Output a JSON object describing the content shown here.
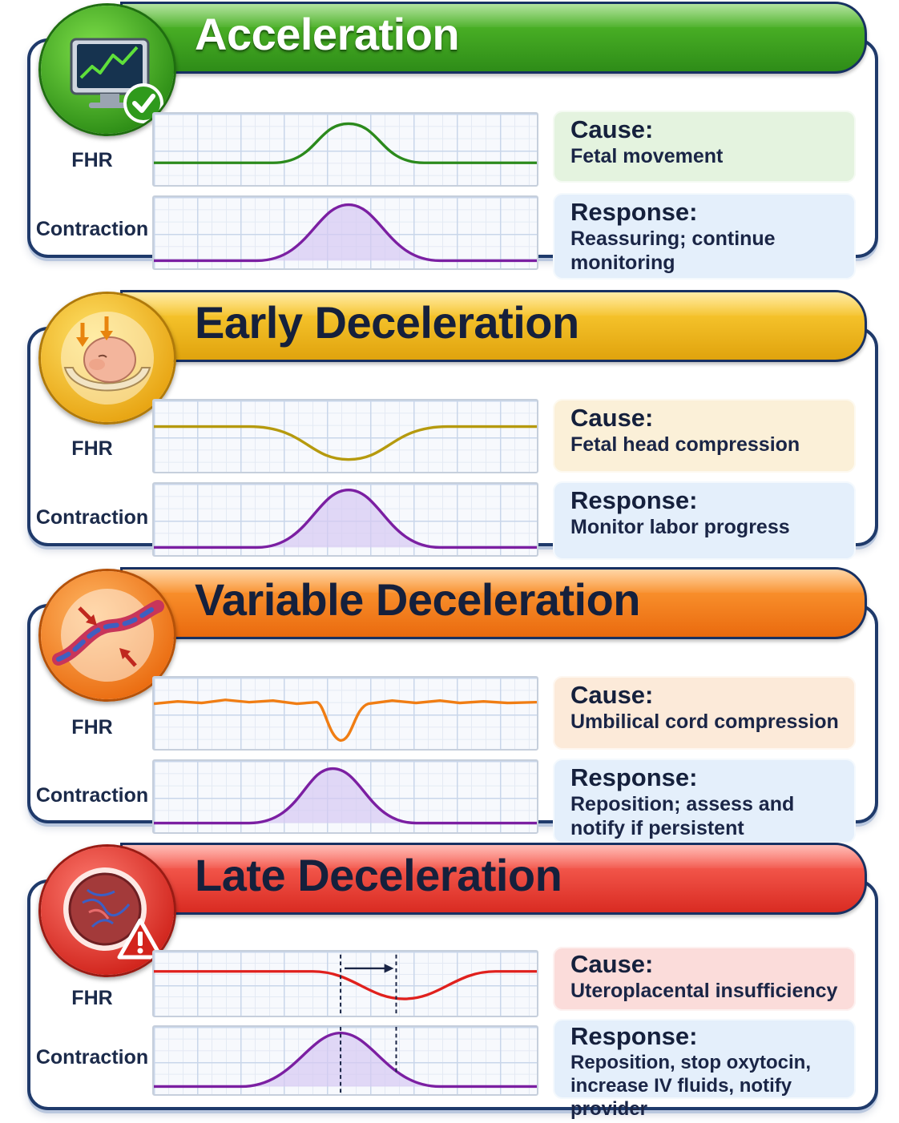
{
  "sections": [
    {
      "title": "Acceleration",
      "fhr_label": "FHR",
      "contraction_label": "Contraction",
      "cause_heading": "Cause:",
      "cause": "Fetal movement",
      "response_heading": "Response:",
      "response": "Reassuring; continue monitoring",
      "icon": "monitor-checkmark-icon",
      "colors": {
        "banner_top": "#56c02b",
        "banner_bottom": "#2e8c18",
        "title": "#ffffff",
        "fhr_line": "#2b8a1c",
        "cause_bg": "#e4f3df"
      }
    },
    {
      "title": "Early Deceleration",
      "fhr_label": "FHR",
      "contraction_label": "Contraction",
      "cause_heading": "Cause:",
      "cause": "Fetal head compression",
      "response_heading": "Response:",
      "response": "Monitor labor progress",
      "icon": "fetal-head-compression-icon",
      "colors": {
        "banner_top": "#ffd23a",
        "banner_bottom": "#e0a30d",
        "title": "#15203c",
        "fhr_line": "#b69a0e",
        "cause_bg": "#fbf0d8"
      }
    },
    {
      "title": "Variable Deceleration",
      "fhr_label": "FHR",
      "contraction_label": "Contraction",
      "cause_heading": "Cause:",
      "cause": "Umbilical cord compression",
      "response_heading": "Response:",
      "response": "Reposition; assess and notify if persistent",
      "icon": "umbilical-cord-compression-icon",
      "colors": {
        "banner_top": "#ffa13a",
        "banner_bottom": "#ea6a0e",
        "title": "#15203c",
        "fhr_line": "#f07d13",
        "cause_bg": "#fcead9"
      }
    },
    {
      "title": "Late Deceleration",
      "fhr_label": "FHR",
      "contraction_label": "Contraction",
      "cause_heading": "Cause:",
      "cause": "Uteroplacental insufficiency",
      "response_heading": "Response:",
      "response": "Reposition, stop oxytocin, increase IV fluids, notify provider",
      "icon": "placenta-warning-icon",
      "colors": {
        "banner_top": "#ff6b5e",
        "banner_bottom": "#d92b22",
        "title": "#15203c",
        "fhr_line": "#e0201d",
        "cause_bg": "#fbdcda"
      }
    }
  ],
  "contraction_color": "#7b1fa2"
}
